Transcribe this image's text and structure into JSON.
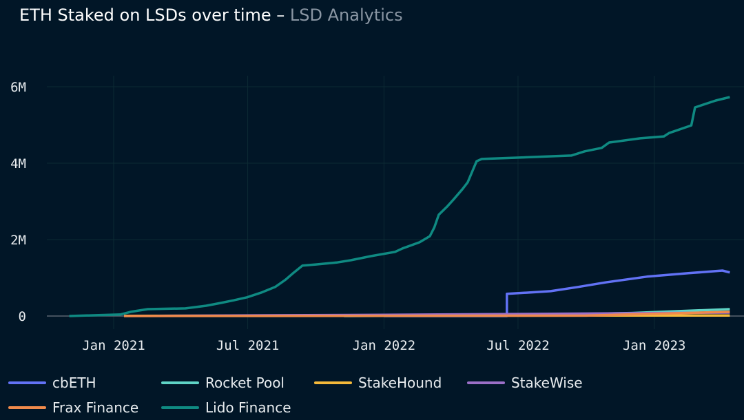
{
  "title": "ETH Staked on LSDs over time",
  "title_sep": " – ",
  "subtitle": "LSD Analytics",
  "chart_data": {
    "type": "line",
    "xlabel": "",
    "ylabel": "",
    "ylim": [
      0,
      6500000
    ],
    "x_ticks": [
      {
        "date": "2021-01-01",
        "label": "Jan 2021"
      },
      {
        "date": "2021-07-01",
        "label": "Jul 2021"
      },
      {
        "date": "2022-01-01",
        "label": "Jan 2022"
      },
      {
        "date": "2022-07-01",
        "label": "Jul 2022"
      },
      {
        "date": "2023-01-01",
        "label": "Jan 2023"
      }
    ],
    "y_ticks": [
      {
        "value": 0,
        "label": "0"
      },
      {
        "value": 2000000,
        "label": "2M"
      },
      {
        "value": 4000000,
        "label": "4M"
      },
      {
        "value": 6000000,
        "label": "6M"
      }
    ],
    "grid": true,
    "legend_position": "bottom",
    "series": [
      {
        "name": "cbETH",
        "color": "#6272f5",
        "points": [
          [
            "2022-01-01",
            0
          ],
          [
            "2022-06-16",
            0
          ],
          [
            "2022-06-16",
            580000
          ],
          [
            "2022-08-14",
            650000
          ],
          [
            "2022-09-20",
            760000
          ],
          [
            "2022-10-27",
            880000
          ],
          [
            "2022-12-22",
            1030000
          ],
          [
            "2023-02-16",
            1120000
          ],
          [
            "2023-04-03",
            1190000
          ],
          [
            "2023-04-13",
            1140000
          ]
        ]
      },
      {
        "name": "Rocket Pool",
        "color": "#5fd4c6",
        "points": [
          [
            "2021-11-08",
            0
          ],
          [
            "2022-06-16",
            20000
          ],
          [
            "2022-12-01",
            80000
          ],
          [
            "2023-04-13",
            180000
          ]
        ]
      },
      {
        "name": "StakeHound",
        "color": "#f5b93a",
        "points": [
          [
            "2021-01-15",
            5000
          ],
          [
            "2023-04-13",
            15000
          ]
        ]
      },
      {
        "name": "StakeWise",
        "color": "#9b6fc7",
        "points": [
          [
            "2021-03-01",
            5000
          ],
          [
            "2022-01-01",
            30000
          ],
          [
            "2023-04-13",
            90000
          ]
        ]
      },
      {
        "name": "Frax Finance",
        "color": "#f08a4b",
        "points": [
          [
            "2021-01-15",
            0
          ],
          [
            "2022-10-01",
            10000
          ],
          [
            "2023-04-13",
            110000
          ]
        ]
      },
      {
        "name": "Lido Finance",
        "color": "#0f8a82",
        "points": [
          [
            "2020-11-02",
            0
          ],
          [
            "2021-01-10",
            40000
          ],
          [
            "2021-01-24",
            110000
          ],
          [
            "2021-02-16",
            180000
          ],
          [
            "2021-04-08",
            200000
          ],
          [
            "2021-05-06",
            270000
          ],
          [
            "2021-05-25",
            340000
          ],
          [
            "2021-06-12",
            410000
          ],
          [
            "2021-06-30",
            490000
          ],
          [
            "2021-07-19",
            610000
          ],
          [
            "2021-08-07",
            760000
          ],
          [
            "2021-08-21",
            950000
          ],
          [
            "2021-08-30",
            1100000
          ],
          [
            "2021-09-13",
            1320000
          ],
          [
            "2021-10-01",
            1350000
          ],
          [
            "2021-10-29",
            1400000
          ],
          [
            "2021-11-17",
            1460000
          ],
          [
            "2021-12-15",
            1570000
          ],
          [
            "2022-01-16",
            1680000
          ],
          [
            "2022-01-26",
            1770000
          ],
          [
            "2022-02-18",
            1930000
          ],
          [
            "2022-03-04",
            2090000
          ],
          [
            "2022-03-10",
            2320000
          ],
          [
            "2022-03-16",
            2650000
          ],
          [
            "2022-03-27",
            2860000
          ],
          [
            "2022-04-05",
            3050000
          ],
          [
            "2022-04-17",
            3320000
          ],
          [
            "2022-04-24",
            3500000
          ],
          [
            "2022-05-01",
            3820000
          ],
          [
            "2022-05-06",
            4050000
          ],
          [
            "2022-05-13",
            4110000
          ],
          [
            "2022-09-11",
            4200000
          ],
          [
            "2022-09-29",
            4310000
          ],
          [
            "2022-10-22",
            4400000
          ],
          [
            "2022-11-01",
            4540000
          ],
          [
            "2022-12-13",
            4650000
          ],
          [
            "2023-01-14",
            4700000
          ],
          [
            "2023-01-21",
            4790000
          ],
          [
            "2023-02-20",
            4990000
          ],
          [
            "2023-02-25",
            5460000
          ],
          [
            "2023-03-25",
            5640000
          ],
          [
            "2023-04-13",
            5730000
          ]
        ]
      }
    ]
  }
}
